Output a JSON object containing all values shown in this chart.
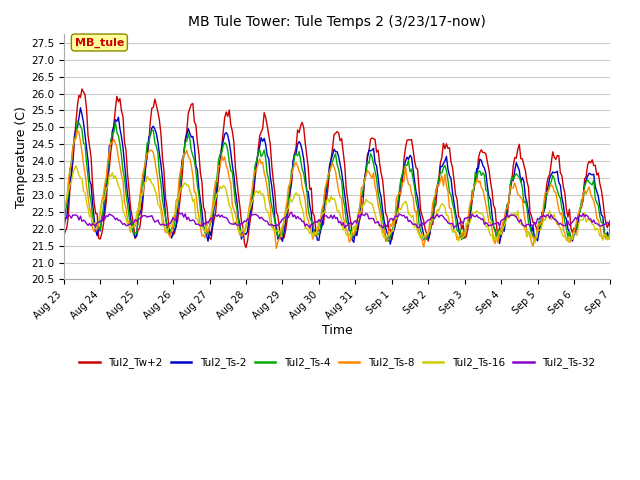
{
  "title": "MB Tule Tower: Tule Temps 2 (3/23/17-now)",
  "xlabel": "Time",
  "ylabel": "Temperature (C)",
  "ylim": [
    20.5,
    27.75
  ],
  "yticks": [
    20.5,
    21.0,
    21.5,
    22.0,
    22.5,
    23.0,
    23.5,
    24.0,
    24.5,
    25.0,
    25.5,
    26.0,
    26.5,
    27.0,
    27.5
  ],
  "series": [
    {
      "label": "Tul2_Tw+2",
      "color": "#cc0000"
    },
    {
      "label": "Tul2_Ts-2",
      "color": "#0000cc"
    },
    {
      "label": "Tul2_Ts-4",
      "color": "#00aa00"
    },
    {
      "label": "Tul2_Ts-8",
      "color": "#ff8800"
    },
    {
      "label": "Tul2_Ts-16",
      "color": "#cccc00"
    },
    {
      "label": "Tul2_Ts-32",
      "color": "#8800cc"
    }
  ],
  "annotation_text": "MB_tule",
  "background_color": "#ffffff",
  "grid_color": "#cccccc",
  "tick_labels": [
    "Aug 23",
    "Aug 24",
    "Aug 25",
    "Aug 26",
    "Aug 27",
    "Aug 28",
    "Aug 29",
    "Aug 30",
    "Aug 31",
    "Sep 1",
    "Sep 2",
    "Sep 3",
    "Sep 4",
    "Sep 5",
    "Sep 6",
    "Sep 7"
  ]
}
